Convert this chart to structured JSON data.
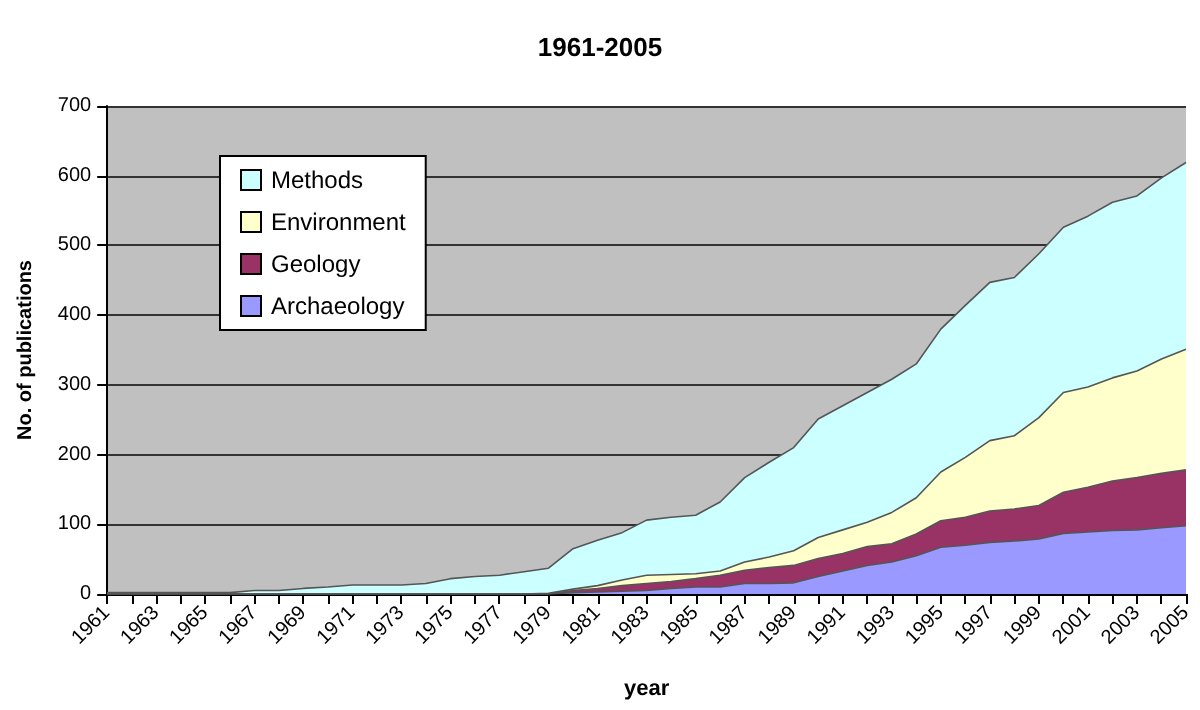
{
  "chart_data": {
    "type": "area",
    "stacked": true,
    "title": "1961-2005",
    "xlabel": "year",
    "ylabel": "No. of publications",
    "categories": [
      "1961",
      null,
      "1963",
      null,
      "1965",
      null,
      "1967",
      null,
      "1969",
      null,
      "1971",
      null,
      "1973",
      null,
      "1975",
      null,
      "1977",
      null,
      "1979",
      null,
      "1981",
      null,
      "1983",
      null,
      "1985",
      null,
      "1987",
      null,
      "1989",
      null,
      "1991",
      null,
      "1993",
      null,
      "1995",
      null,
      "1997",
      null,
      "1999",
      null,
      "2001",
      null,
      "2003",
      null,
      "2005"
    ],
    "series": [
      {
        "name": "Archaeology",
        "color": "#9999ff",
        "values": [
          0,
          0,
          0,
          0,
          0,
          0,
          0,
          0,
          0,
          0,
          0,
          0,
          0,
          0,
          0,
          0,
          0,
          0,
          0,
          2,
          3,
          4,
          5,
          8,
          10,
          10,
          15,
          15,
          16,
          25,
          33,
          41,
          46,
          55,
          67,
          70,
          74,
          76,
          79,
          87,
          89,
          91,
          92,
          95,
          98
        ]
      },
      {
        "name": "Geology",
        "color": "#993366",
        "values": [
          0,
          0,
          0,
          0,
          0,
          0,
          0,
          0,
          0,
          0,
          0,
          0,
          0,
          0,
          0,
          0,
          0,
          0,
          0,
          3,
          5,
          8,
          10,
          10,
          12,
          17,
          19,
          23,
          25,
          26,
          25,
          27,
          26,
          31,
          38,
          40,
          45,
          46,
          48,
          59,
          64,
          71,
          75,
          78,
          80
        ]
      },
      {
        "name": "Environment",
        "color": "#ffffcc",
        "values": [
          0,
          0,
          0,
          0,
          0,
          0,
          0,
          0,
          0,
          0,
          0,
          0,
          0,
          0,
          0,
          0,
          0,
          0,
          1,
          2,
          4,
          8,
          12,
          10,
          7,
          6,
          12,
          15,
          21,
          30,
          34,
          35,
          45,
          52,
          70,
          86,
          101,
          105,
          126,
          143,
          144,
          148,
          153,
          164,
          173
        ]
      },
      {
        "name": "Methods",
        "color": "#ccffff",
        "values": [
          2,
          2,
          2,
          2,
          2,
          2,
          5,
          5,
          8,
          10,
          13,
          13,
          13,
          15,
          22,
          25,
          27,
          32,
          36,
          58,
          65,
          68,
          79,
          82,
          84,
          99,
          121,
          136,
          148,
          170,
          178,
          186,
          191,
          192,
          205,
          218,
          227,
          227,
          235,
          237,
          245,
          252,
          251,
          260,
          268
        ]
      }
    ],
    "ylim": [
      0,
      700
    ],
    "yticks": [
      0,
      100,
      200,
      300,
      400,
      500,
      600,
      700
    ],
    "grid": "y",
    "legend": "top left"
  }
}
